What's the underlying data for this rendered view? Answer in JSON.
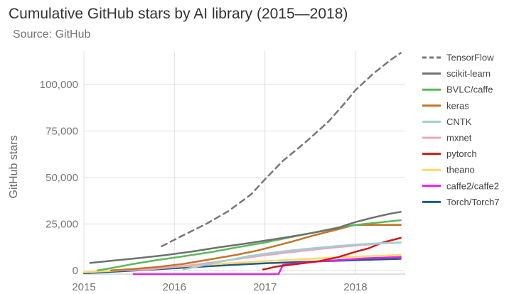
{
  "title": "Cumulative GitHub stars by AI library (2015—2018)",
  "subtitle": "Source: GitHub",
  "chart_data": {
    "type": "line",
    "title": "Cumulative GitHub stars by AI library (2015—2018)",
    "subtitle": "Source: GitHub",
    "xlabel": "",
    "ylabel": "GitHub stars",
    "xlim": [
      2015.0,
      2018.55
    ],
    "ylim": [
      -2000,
      118000
    ],
    "x_ticks": [
      2015,
      2016,
      2017,
      2018
    ],
    "x_tick_labels": [
      "2015",
      "2016",
      "2017",
      "2018"
    ],
    "y_ticks": [
      0,
      25000,
      50000,
      75000,
      100000
    ],
    "y_tick_labels": [
      "0",
      "25,000",
      "50,000",
      "75,000",
      "100,000"
    ],
    "grid": true,
    "legend_position": "right",
    "series": [
      {
        "name": "TensorFlow",
        "color": "#777777",
        "dashed": true,
        "x": [
          2015.86,
          2016.1,
          2016.35,
          2016.6,
          2016.85,
          2017.0,
          2017.2,
          2017.45,
          2017.7,
          2017.9,
          2018.0,
          2018.2,
          2018.38,
          2018.5
        ],
        "y": [
          13000,
          19000,
          25000,
          32000,
          41000,
          49000,
          59000,
          69000,
          80000,
          91000,
          97000,
          106000,
          113000,
          117000
        ]
      },
      {
        "name": "scikit-learn",
        "color": "#707070",
        "x": [
          2015.07,
          2015.3,
          2015.6,
          2015.9,
          2016.2,
          2016.5,
          2016.8,
          2017.0,
          2017.3,
          2017.6,
          2017.8,
          2018.0,
          2018.2,
          2018.38,
          2018.5
        ],
        "y": [
          4000,
          5200,
          6600,
          8200,
          10200,
          12500,
          14500,
          16000,
          18300,
          20800,
          22800,
          26000,
          28500,
          30500,
          31500
        ]
      },
      {
        "name": "BVLC/caffe",
        "color": "#5cb85c",
        "x": [
          2015.15,
          2015.3,
          2015.55,
          2015.8,
          2016.1,
          2016.4,
          2016.7,
          2017.0,
          2017.3,
          2017.6,
          2017.85,
          2018.1,
          2018.3,
          2018.5
        ],
        "y": [
          0,
          1200,
          3500,
          5500,
          7600,
          9800,
          12500,
          15000,
          18000,
          21000,
          23500,
          25000,
          26000,
          27000
        ]
      },
      {
        "name": "keras",
        "color": "#c0752a",
        "x": [
          2015.3,
          2015.55,
          2015.8,
          2016.1,
          2016.4,
          2016.7,
          2016.9,
          2017.1,
          2017.3,
          2017.55,
          2017.8,
          2017.95,
          2018.0,
          2018.2,
          2018.5
        ],
        "y": [
          0,
          800,
          1800,
          3500,
          6000,
          8500,
          10500,
          13000,
          15500,
          19000,
          22000,
          24000,
          24500,
          24500,
          24500
        ]
      },
      {
        "name": "CNTK",
        "color": "#9fd0d0",
        "x": [
          2016.1,
          2016.3,
          2016.55,
          2016.8,
          2017.0,
          2017.3,
          2017.6,
          2017.9,
          2018.1,
          2018.3,
          2018.5
        ],
        "y": [
          500,
          2500,
          5000,
          7500,
          9000,
          10800,
          12300,
          13500,
          14200,
          14700,
          15000
        ]
      },
      {
        "name": "mxnet",
        "color": "#e8a6c0",
        "x": [
          2015.4,
          2015.7,
          2016.0,
          2016.3,
          2016.6,
          2016.9,
          2017.2,
          2017.5,
          2017.8,
          2018.1,
          2018.3,
          2018.5
        ],
        "y": [
          0,
          500,
          1800,
          3500,
          5500,
          7500,
          9300,
          11000,
          12500,
          13800,
          14500,
          15000
        ]
      },
      {
        "name": "pytorch",
        "color": "#cc1b1b",
        "x": [
          2016.98,
          2017.08,
          2017.12,
          2017.25,
          2017.45,
          2017.6,
          2017.8,
          2018.0,
          2018.15,
          2018.3,
          2018.5
        ],
        "y": [
          500,
          1500,
          2000,
          2800,
          4000,
          5000,
          7000,
          10000,
          12000,
          15000,
          17500
        ]
      },
      {
        "name": "theano",
        "color": "#ffd966",
        "x": [
          2015.0,
          2015.4,
          2015.8,
          2016.2,
          2016.6,
          2017.0,
          2017.4,
          2017.8,
          2018.2,
          2018.5
        ],
        "y": [
          -1000,
          0,
          1200,
          2500,
          3800,
          5000,
          6000,
          7000,
          7800,
          8300
        ]
      },
      {
        "name": "caffe2/caffe2",
        "color": "#e81ee8",
        "x": [
          2015.55,
          2016.0,
          2016.5,
          2017.0,
          2017.15,
          2017.2,
          2017.5,
          2017.8,
          2018.1,
          2018.5
        ],
        "y": [
          -2000,
          -2000,
          -2000,
          -2000,
          -2000,
          3000,
          4500,
          5500,
          6500,
          7200
        ]
      },
      {
        "name": "Torch/Torch7",
        "color": "#1f5a85",
        "x": [
          2015.0,
          2015.4,
          2015.8,
          2016.2,
          2016.6,
          2017.0,
          2017.4,
          2017.8,
          2018.2,
          2018.5
        ],
        "y": [
          -1500,
          -500,
          600,
          1700,
          2800,
          3800,
          4600,
          5200,
          5800,
          6200
        ]
      }
    ]
  }
}
